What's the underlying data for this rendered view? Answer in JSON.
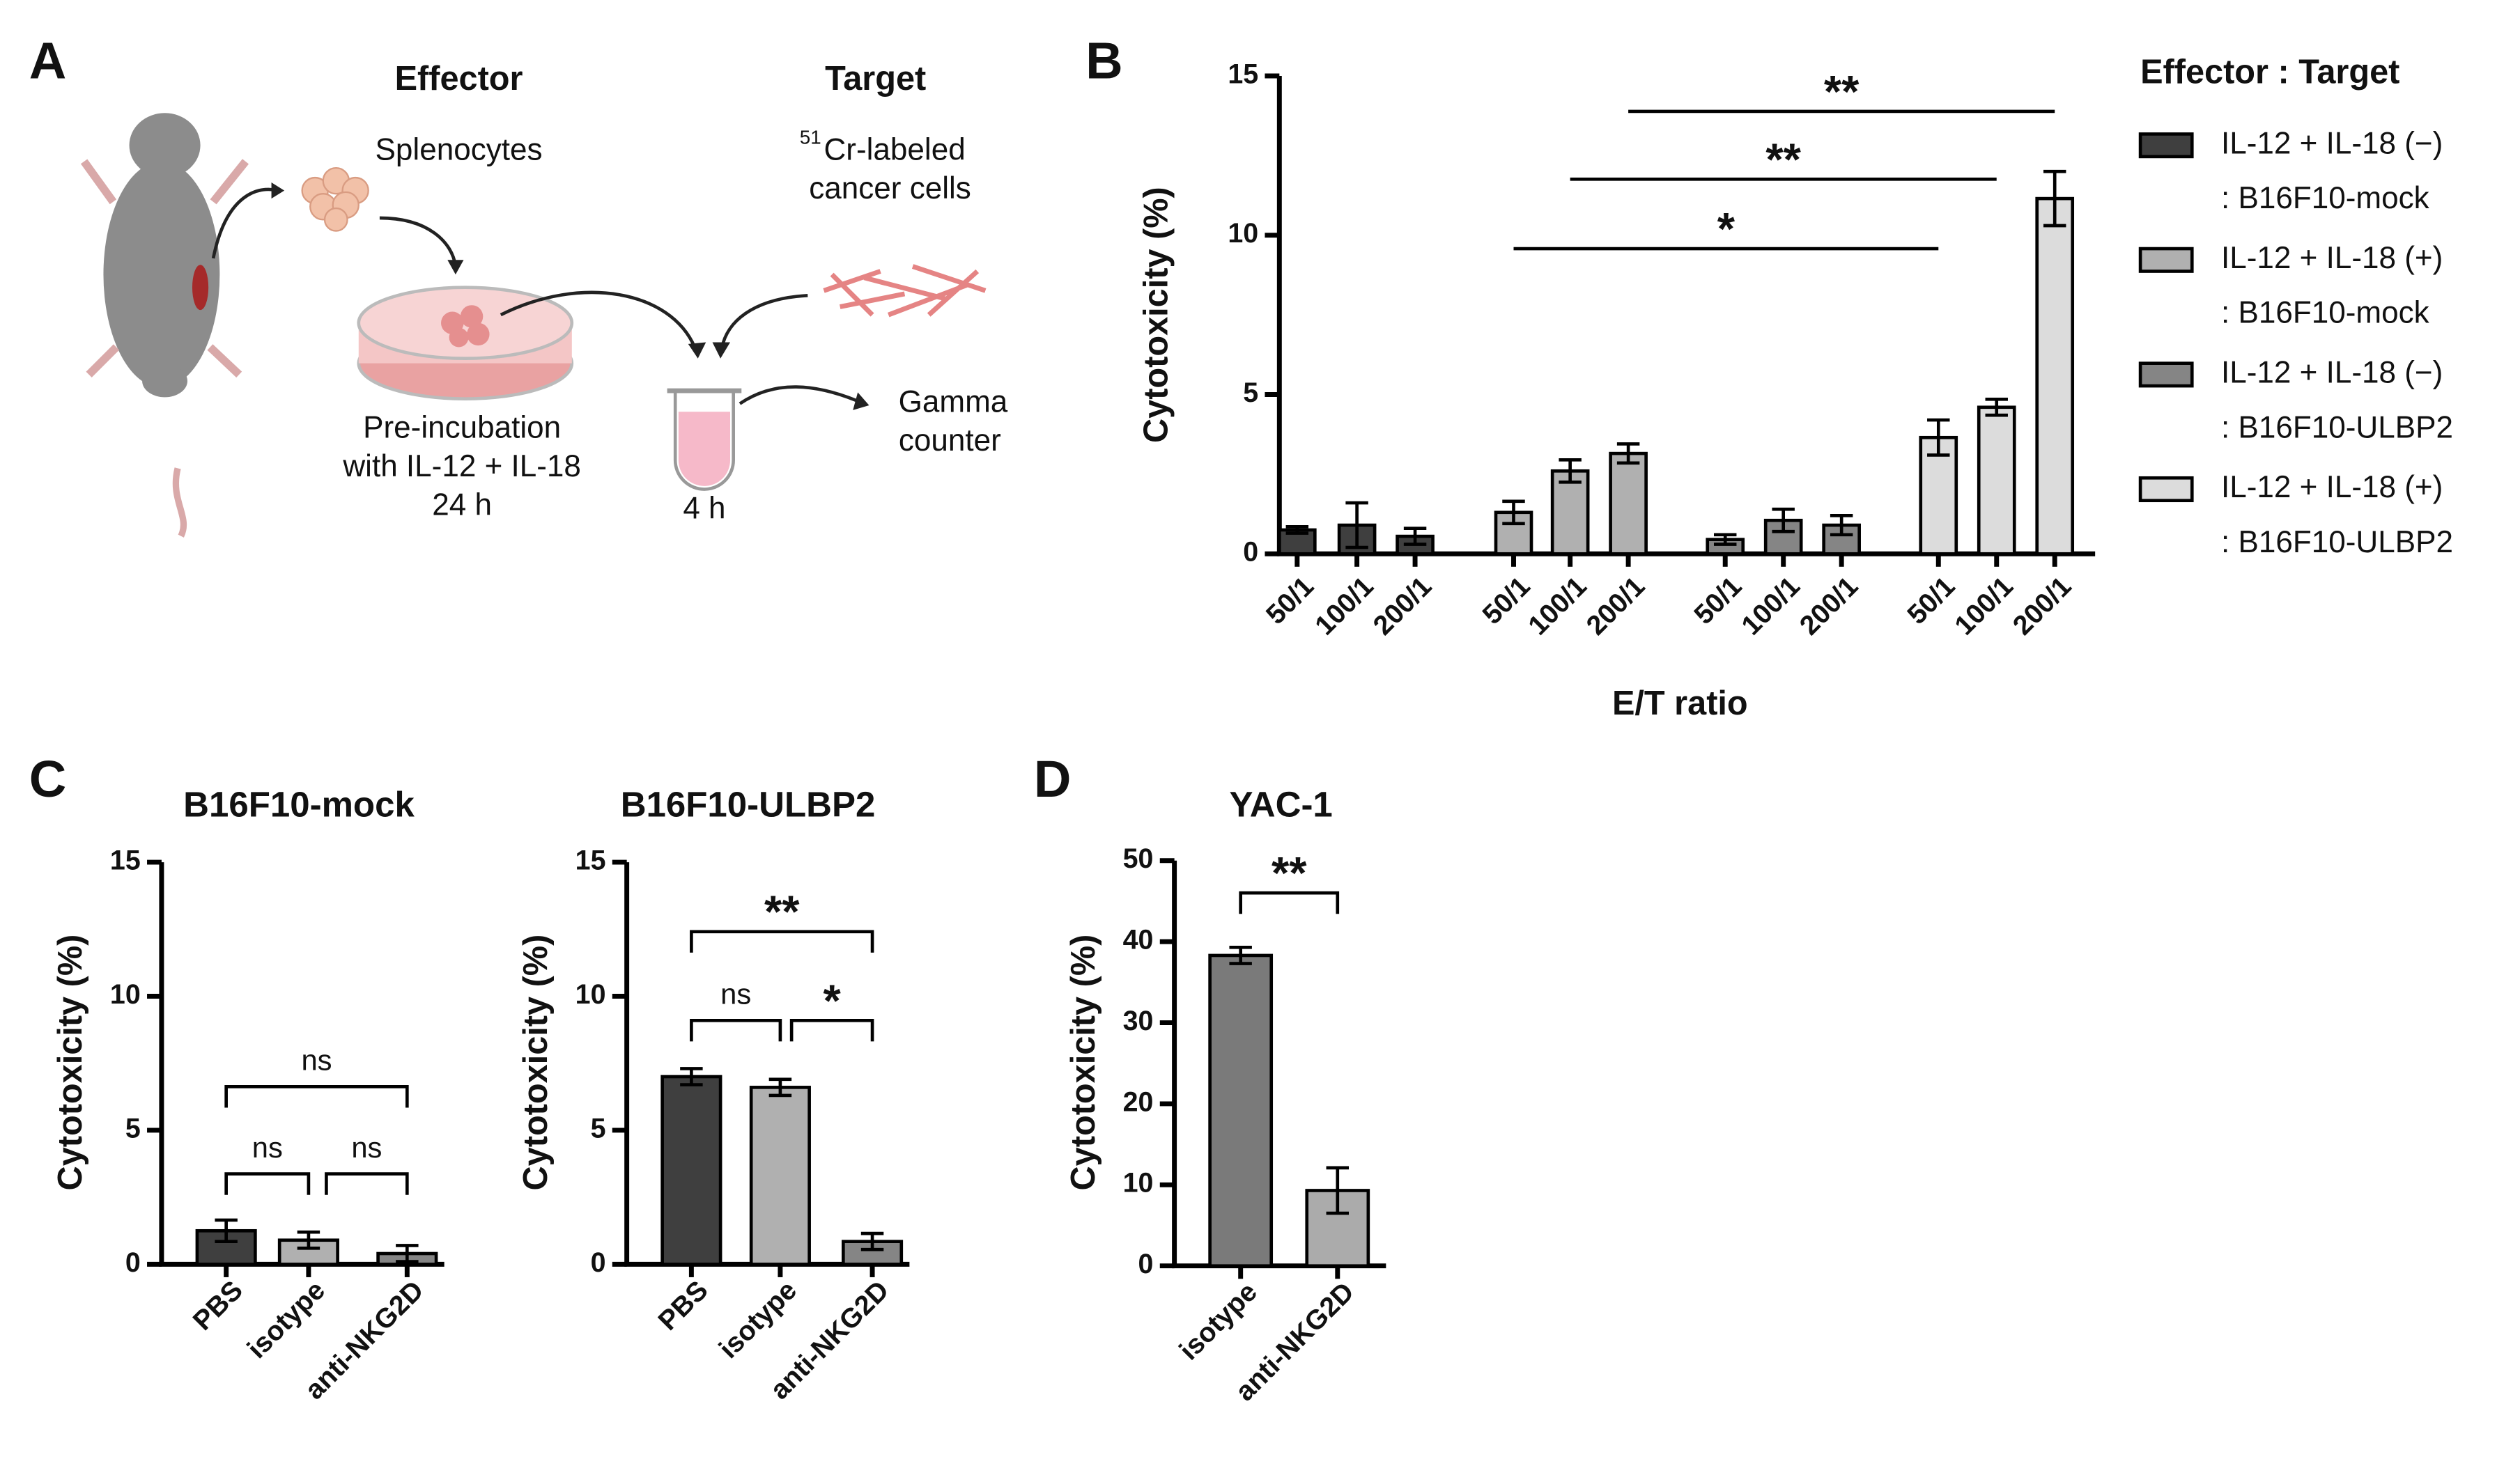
{
  "panel_a": {
    "label": "A",
    "effector": "Effector",
    "target": "Target",
    "splenocytes": "Splenocytes",
    "target_cells": {
      "superscript": "51",
      "line1": "Cr-labeled",
      "line2": "cancer cells"
    },
    "preincubation": [
      "Pre-incubation",
      "with IL-12 + IL-18",
      "24 h"
    ],
    "incubation": "4 h",
    "readout": [
      "Gamma",
      "counter"
    ]
  },
  "chart_data": [
    {
      "panel": "B",
      "type": "bar",
      "y_label": "Cytotoxicity (%)",
      "x_label": "E/T ratio",
      "categories": [
        "50/1",
        "100/1",
        "200/1"
      ],
      "ylim": [
        0,
        15
      ],
      "yticks": [
        0,
        5,
        10,
        15
      ],
      "legend_title": "Effector : Target",
      "series": [
        {
          "name": "IL-12 + IL-18 (−)",
          "target": ": B16F10-mock",
          "color": "#3f3f3f",
          "values": [
            0.75,
            0.9,
            0.55
          ],
          "errors": [
            0.1,
            0.7,
            0.25
          ]
        },
        {
          "name": "IL-12 + IL-18 (+)",
          "target": ": B16F10-mock",
          "color": "#b0b0b0",
          "values": [
            1.3,
            2.6,
            3.15
          ],
          "errors": [
            0.35,
            0.35,
            0.3
          ]
        },
        {
          "name": "IL-12 + IL-18 (−)",
          "target": ": B16F10-ULBP2",
          "color": "#858585",
          "values": [
            0.45,
            1.05,
            0.9
          ],
          "errors": [
            0.15,
            0.35,
            0.3
          ]
        },
        {
          "name": "IL-12 + IL-18 (+)",
          "target": ": B16F10-ULBP2",
          "color": "#dcdcdc",
          "values": [
            3.65,
            4.6,
            11.15
          ],
          "errors": [
            0.55,
            0.25,
            0.85
          ]
        }
      ],
      "annotations": [
        "**",
        "**",
        "*"
      ]
    },
    {
      "panel": "C",
      "type": "bar",
      "title": "B16F10-mock",
      "y_label": "Cytotoxicity (%)",
      "categories": [
        "PBS",
        "isotype",
        "anti-NKG2D"
      ],
      "values": [
        1.25,
        0.9,
        0.4
      ],
      "errors": [
        0.4,
        0.3,
        0.3
      ],
      "colors": [
        "#3f3f3f",
        "#b0b0b0",
        "#858585"
      ],
      "ylim": [
        0,
        15
      ],
      "yticks": [
        0,
        5,
        10,
        15
      ],
      "annotations": [
        "ns",
        "ns",
        "ns"
      ]
    },
    {
      "type": "bar",
      "title": "B16F10-ULBP2",
      "y_label": "Cytotoxicity (%)",
      "categories": [
        "PBS",
        "isotype",
        "anti-NKG2D"
      ],
      "values": [
        7.0,
        6.6,
        0.85
      ],
      "errors": [
        0.3,
        0.3,
        0.3
      ],
      "colors": [
        "#3f3f3f",
        "#b0b0b0",
        "#858585"
      ],
      "ylim": [
        0,
        15
      ],
      "yticks": [
        0,
        5,
        10,
        15
      ],
      "annotations": [
        "ns",
        "*",
        "**"
      ]
    },
    {
      "panel": "D",
      "type": "bar",
      "title": "YAC-1",
      "y_label": "Cytotoxicity (%)",
      "categories": [
        "isotype",
        "anti-NKG2D"
      ],
      "values": [
        38.3,
        9.3
      ],
      "errors": [
        1.0,
        2.8
      ],
      "colors": [
        "#7a7a7a",
        "#ababab"
      ],
      "ylim": [
        0,
        50
      ],
      "yticks": [
        0,
        10,
        20,
        30,
        40,
        50
      ],
      "annotations": [
        "**"
      ]
    }
  ]
}
